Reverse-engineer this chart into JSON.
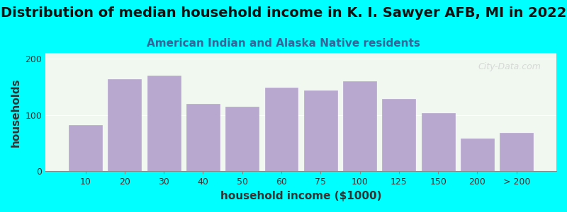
{
  "title": "Distribution of median household income in K. I. Sawyer AFB, MI in 2022",
  "subtitle": "American Indian and Alaska Native residents",
  "xlabel": "household income ($1000)",
  "ylabel": "households",
  "background_outer": "#00FFFF",
  "background_inner_top": "#e8f5e8",
  "background_inner_bottom": "#ffffff",
  "bar_color": "#b8a8d0",
  "bar_edge_color": "#b8a8d0",
  "categories": [
    "10",
    "20",
    "30",
    "40",
    "50",
    "60",
    "75",
    "100",
    "125",
    "150",
    "200",
    "> 200"
  ],
  "values": [
    82,
    163,
    170,
    120,
    115,
    148,
    143,
    160,
    128,
    103,
    58,
    68
  ],
  "ylim": [
    0,
    210
  ],
  "yticks": [
    0,
    100,
    200
  ],
  "title_fontsize": 14,
  "subtitle_fontsize": 11,
  "axis_label_fontsize": 11,
  "tick_fontsize": 9,
  "watermark": "City-Data.com"
}
